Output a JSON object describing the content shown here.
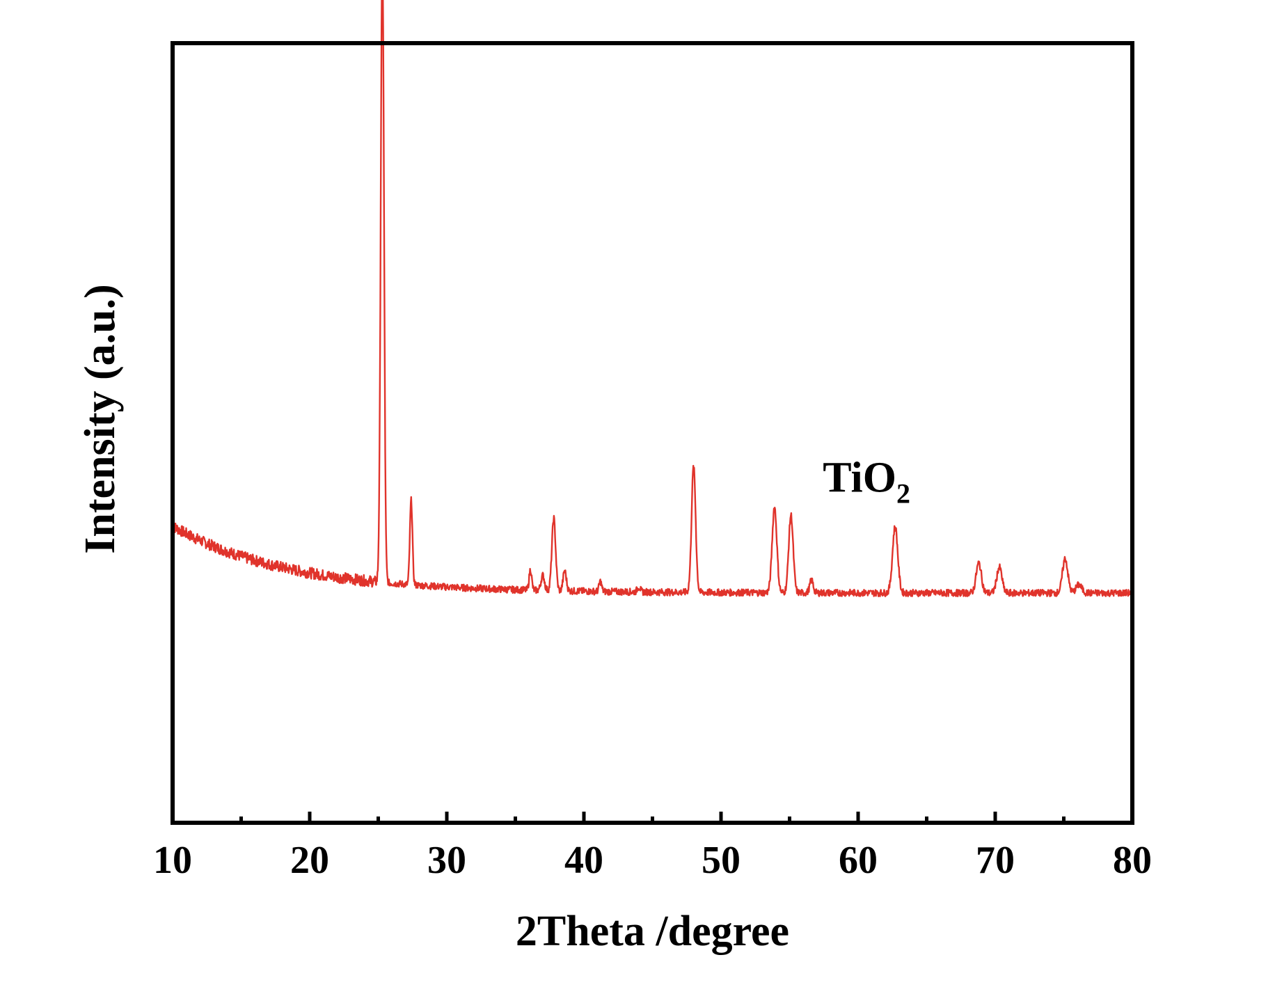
{
  "chart_data": {
    "type": "line",
    "title": "",
    "xlabel": "2Theta /degree",
    "ylabel": "Intensity (a.u.)",
    "xlim": [
      10,
      80
    ],
    "ylim": [
      0,
      100
    ],
    "x_ticks": [
      "10",
      "20",
      "30",
      "40",
      "50",
      "60",
      "70",
      "80"
    ],
    "y_ticks_labeled": false,
    "grid": false,
    "line_color": "#e0332b",
    "annotation": {
      "text": "TiO",
      "subscript": "2",
      "x": 62.5,
      "y": 33
    },
    "series": [
      {
        "name": "",
        "baseline": {
          "start": 27.5,
          "end": 16.8,
          "decay": 0.12
        },
        "peaks": [
          {
            "x": 25.3,
            "y": 100.0,
            "width": 0.28
          },
          {
            "x": 27.4,
            "y": 13.5,
            "width": 0.22
          },
          {
            "x": 36.1,
            "y": 3.3,
            "width": 0.22
          },
          {
            "x": 37.0,
            "y": 2.4,
            "width": 0.3
          },
          {
            "x": 37.8,
            "y": 11.6,
            "width": 0.32
          },
          {
            "x": 38.6,
            "y": 3.2,
            "width": 0.28
          },
          {
            "x": 41.2,
            "y": 1.6,
            "width": 0.22
          },
          {
            "x": 44.0,
            "y": 0.8,
            "width": 0.25
          },
          {
            "x": 48.0,
            "y": 20.1,
            "width": 0.35
          },
          {
            "x": 53.9,
            "y": 13.7,
            "width": 0.4
          },
          {
            "x": 55.1,
            "y": 12.4,
            "width": 0.38
          },
          {
            "x": 56.6,
            "y": 2.0,
            "width": 0.3
          },
          {
            "x": 62.7,
            "y": 10.6,
            "width": 0.45
          },
          {
            "x": 68.8,
            "y": 4.8,
            "width": 0.45
          },
          {
            "x": 70.3,
            "y": 4.1,
            "width": 0.45
          },
          {
            "x": 75.1,
            "y": 5.5,
            "width": 0.45
          },
          {
            "x": 76.1,
            "y": 1.3,
            "width": 0.5
          }
        ]
      }
    ]
  }
}
